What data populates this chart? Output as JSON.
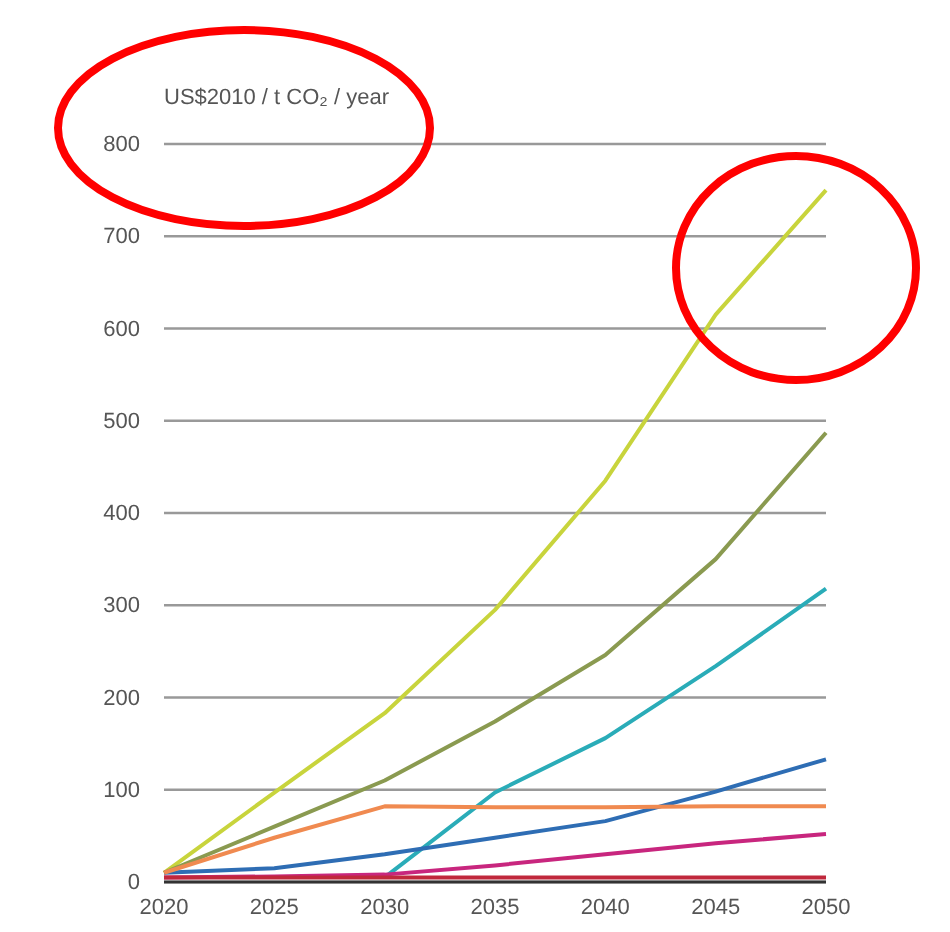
{
  "chart_data": {
    "type": "line",
    "ylabel": "US$2010 / t CO₂ / year",
    "x": [
      2020,
      2025,
      2030,
      2035,
      2040,
      2045,
      2050
    ],
    "xlim": [
      2020,
      2050
    ],
    "xticks": [
      2020,
      2025,
      2030,
      2035,
      2040,
      2045,
      2050
    ],
    "ylim": [
      0,
      800
    ],
    "yticks": [
      0,
      100,
      200,
      300,
      400,
      500,
      600,
      700,
      800
    ],
    "grid": "y",
    "marker": "none",
    "line_style": "solid",
    "series": [
      {
        "color": "#c8d43c",
        "values": [
          10,
          97,
          183,
          295,
          435,
          615,
          750
        ]
      },
      {
        "color": "#8a9a50",
        "values": [
          10,
          60,
          110,
          174,
          246,
          350,
          487
        ]
      },
      {
        "color": "#2aacb8",
        "x": [
          2030,
          2035,
          2040,
          2045,
          2050
        ],
        "values": [
          5,
          97,
          156,
          234,
          318
        ]
      },
      {
        "color": "#2e6db4",
        "values": [
          10,
          15,
          30,
          48,
          66,
          98,
          133
        ]
      },
      {
        "color": "#f08a50",
        "values": [
          10,
          48,
          82,
          81,
          81,
          82,
          82
        ]
      },
      {
        "color": "#c8267e",
        "values": [
          5,
          6,
          8,
          18,
          30,
          42,
          52
        ]
      },
      {
        "color": "#c0283c",
        "values": [
          5,
          5,
          5,
          5,
          5,
          5,
          5
        ]
      }
    ]
  }
}
